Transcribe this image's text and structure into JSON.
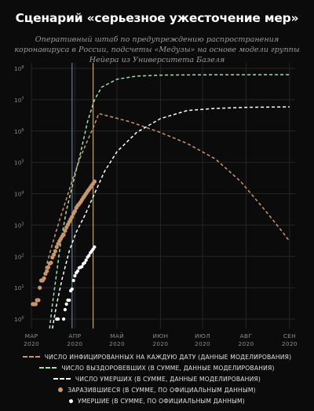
{
  "title": "Сценарий «серьезное ужесточение мер»",
  "subtitle": "Оперативный штаб по предупреждению распространения коронавируса в России, подсчеты «Медузы» на основе модели группы Нейера из Университета Базеля",
  "colors": {
    "background": "#0b0b0b",
    "grid": "#262626",
    "infected": "#c9966b",
    "recovered": "#9fe0b0",
    "deaths": "#ffffff",
    "confirmed": "#c9966b",
    "official_deaths": "#ffffff",
    "vline_blue": "#6f8fc4",
    "vline_yellow": "#e0c878"
  },
  "chart_data": {
    "type": "line",
    "yscale": "log",
    "ylim": [
      0.5,
      150000000
    ],
    "xlim": [
      "2020-03-01",
      "2020-09-05"
    ],
    "grid": true,
    "legend_position": "bottom",
    "y_ticks": [
      {
        "base": "10",
        "exp": "0"
      },
      {
        "base": "10",
        "exp": "1"
      },
      {
        "base": "10",
        "exp": "2"
      },
      {
        "base": "10",
        "exp": "3"
      },
      {
        "base": "10",
        "exp": "4"
      },
      {
        "base": "10",
        "exp": "5"
      },
      {
        "base": "10",
        "exp": "6"
      },
      {
        "base": "10",
        "exp": "7"
      },
      {
        "base": "10",
        "exp": "8"
      }
    ],
    "x_ticks": [
      {
        "month": "МАР",
        "year": "2020",
        "date": "2020-03-01"
      },
      {
        "month": "АПР",
        "year": "2020",
        "date": "2020-04-01"
      },
      {
        "month": "МАЙ",
        "year": "2020",
        "date": "2020-05-01"
      },
      {
        "month": "ИЮН",
        "year": "2020",
        "date": "2020-06-01"
      },
      {
        "month": "ИЮЛ",
        "year": "2020",
        "date": "2020-07-01"
      },
      {
        "month": "АВГ",
        "year": "2020",
        "date": "2020-08-01"
      },
      {
        "month": "СЕН",
        "year": "2020",
        "date": "2020-09-01"
      }
    ],
    "vertical_lines": [
      {
        "date": "2020-03-30",
        "color": "#6f8fc4"
      },
      {
        "date": "2020-04-14",
        "color": "#e0c878"
      }
    ],
    "series": [
      {
        "name": "ЧИСЛО ИНФИЦИРОВАННЫХ НА КАЖДУЮ ДАТУ (ДАННЫЕ МОДЕЛИРОВАНИЯ)",
        "style": "dashed",
        "color": "#c9966b",
        "points": [
          [
            "2020-03-11",
            40
          ],
          [
            "2020-03-16",
            250
          ],
          [
            "2020-03-21",
            1400
          ],
          [
            "2020-03-26",
            7000
          ],
          [
            "2020-03-31",
            35000
          ],
          [
            "2020-04-05",
            150000
          ],
          [
            "2020-04-10",
            500000
          ],
          [
            "2020-04-15",
            1600000
          ],
          [
            "2020-04-18",
            3600000
          ],
          [
            "2020-04-25",
            3000000
          ],
          [
            "2020-05-10",
            2000000
          ],
          [
            "2020-06-01",
            900000
          ],
          [
            "2020-06-20",
            400000
          ],
          [
            "2020-07-10",
            130000
          ],
          [
            "2020-07-28",
            25000
          ],
          [
            "2020-08-15",
            2800
          ],
          [
            "2020-08-27",
            600
          ],
          [
            "2020-09-01",
            300
          ]
        ]
      },
      {
        "name": "ЧИСЛО ВЫЗДОРОВЕВШИХ (В СУММЕ, ДАННЫЕ МОДЕЛИРОВАНИЯ)",
        "style": "dashed",
        "color": "#9fe0b0",
        "points": [
          [
            "2020-03-14",
            0.5
          ],
          [
            "2020-03-16",
            3
          ],
          [
            "2020-03-19",
            30
          ],
          [
            "2020-03-22",
            300
          ],
          [
            "2020-03-26",
            3000
          ],
          [
            "2020-03-31",
            25000
          ],
          [
            "2020-04-05",
            200000
          ],
          [
            "2020-04-10",
            2000000
          ],
          [
            "2020-04-15",
            10000000
          ],
          [
            "2020-04-20",
            25000000
          ],
          [
            "2020-05-01",
            45000000
          ],
          [
            "2020-05-15",
            57000000
          ],
          [
            "2020-06-01",
            61000000
          ],
          [
            "2020-07-01",
            62500000
          ],
          [
            "2020-09-01",
            63000000
          ]
        ]
      },
      {
        "name": "ЧИСЛО УМЕРШИХ (В СУММЕ, ДАННЫЕ МОДЕЛИРОВАНИЯ)",
        "style": "dashed",
        "color": "#ffffff",
        "points": [
          [
            "2020-03-16",
            0.5
          ],
          [
            "2020-03-19",
            3
          ],
          [
            "2020-03-23",
            20
          ],
          [
            "2020-03-28",
            150
          ],
          [
            "2020-04-02",
            600
          ],
          [
            "2020-04-08",
            2000
          ],
          [
            "2020-04-15",
            10000
          ],
          [
            "2020-04-22",
            50000
          ],
          [
            "2020-05-01",
            220000
          ],
          [
            "2020-05-15",
            900000
          ],
          [
            "2020-06-01",
            2500000
          ],
          [
            "2020-06-20",
            4500000
          ],
          [
            "2020-07-10",
            5300000
          ],
          [
            "2020-08-01",
            5700000
          ],
          [
            "2020-09-01",
            5900000
          ]
        ]
      },
      {
        "name": "ЗАРАЗИВШИЕСЯ (В СУММЕ, ПО ОФИЦИАЛЬНЫМ ДАННЫМ)",
        "style": "dots",
        "color": "#c9966b",
        "points": [
          [
            "2020-03-02",
            3
          ],
          [
            "2020-03-03",
            3
          ],
          [
            "2020-03-04",
            3
          ],
          [
            "2020-03-05",
            4
          ],
          [
            "2020-03-06",
            4
          ],
          [
            "2020-03-07",
            10
          ],
          [
            "2020-03-08",
            17
          ],
          [
            "2020-03-09",
            17
          ],
          [
            "2020-03-10",
            20
          ],
          [
            "2020-03-11",
            28
          ],
          [
            "2020-03-12",
            34
          ],
          [
            "2020-03-13",
            45
          ],
          [
            "2020-03-14",
            59
          ],
          [
            "2020-03-15",
            63
          ],
          [
            "2020-03-16",
            93
          ],
          [
            "2020-03-17",
            114
          ],
          [
            "2020-03-18",
            147
          ],
          [
            "2020-03-19",
            199
          ],
          [
            "2020-03-20",
            253
          ],
          [
            "2020-03-21",
            306
          ],
          [
            "2020-03-22",
            367
          ],
          [
            "2020-03-23",
            438
          ],
          [
            "2020-03-24",
            495
          ],
          [
            "2020-03-25",
            658
          ],
          [
            "2020-03-26",
            840
          ],
          [
            "2020-03-27",
            1036
          ],
          [
            "2020-03-28",
            1264
          ],
          [
            "2020-03-29",
            1534
          ],
          [
            "2020-03-30",
            1836
          ],
          [
            "2020-03-31",
            2337
          ],
          [
            "2020-04-01",
            2777
          ],
          [
            "2020-04-02",
            3548
          ],
          [
            "2020-04-03",
            4149
          ],
          [
            "2020-04-04",
            4731
          ],
          [
            "2020-04-05",
            5389
          ],
          [
            "2020-04-06",
            6343
          ],
          [
            "2020-04-07",
            7497
          ],
          [
            "2020-04-08",
            8672
          ],
          [
            "2020-04-09",
            10131
          ],
          [
            "2020-04-10",
            11917
          ],
          [
            "2020-04-11",
            13584
          ],
          [
            "2020-04-12",
            15770
          ],
          [
            "2020-04-13",
            18328
          ],
          [
            "2020-04-14",
            21102
          ],
          [
            "2020-04-15",
            24490
          ]
        ]
      },
      {
        "name": "УМЕРШИЕ (В СУММЕ, ПО ОФИЦИАЛЬНЫМ ДАННЫМ)",
        "style": "dots",
        "color": "#ffffff",
        "points": [
          [
            "2020-03-19",
            1
          ],
          [
            "2020-03-20",
            1
          ],
          [
            "2020-03-24",
            1
          ],
          [
            "2020-03-25",
            2
          ],
          [
            "2020-03-26",
            3
          ],
          [
            "2020-03-27",
            4
          ],
          [
            "2020-03-28",
            4
          ],
          [
            "2020-03-29",
            8
          ],
          [
            "2020-03-30",
            9
          ],
          [
            "2020-03-31",
            17
          ],
          [
            "2020-04-01",
            24
          ],
          [
            "2020-04-02",
            30
          ],
          [
            "2020-04-03",
            34
          ],
          [
            "2020-04-04",
            43
          ],
          [
            "2020-04-05",
            45
          ],
          [
            "2020-04-06",
            47
          ],
          [
            "2020-04-07",
            58
          ],
          [
            "2020-04-08",
            63
          ],
          [
            "2020-04-09",
            76
          ],
          [
            "2020-04-10",
            94
          ],
          [
            "2020-04-11",
            106
          ],
          [
            "2020-04-12",
            130
          ],
          [
            "2020-04-13",
            148
          ],
          [
            "2020-04-14",
            170
          ],
          [
            "2020-04-15",
            198
          ]
        ]
      }
    ]
  }
}
